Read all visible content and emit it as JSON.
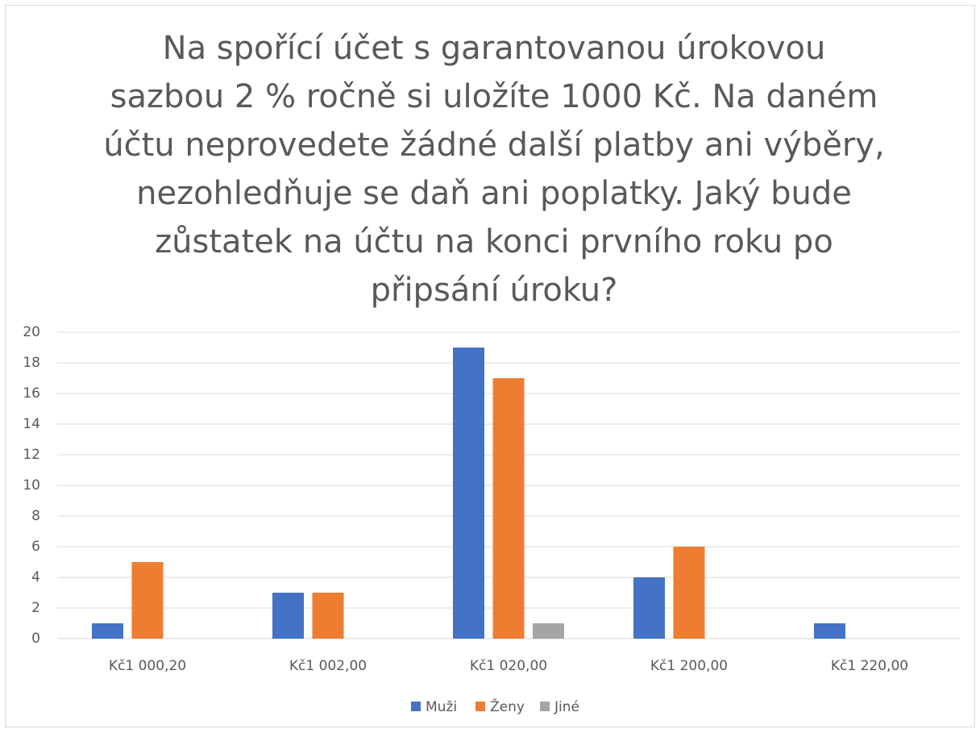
{
  "chart_data": {
    "type": "bar",
    "title": "Na spořící účet s garantovanou úrokovou sazbou 2 % ročně si uložíte 1000 Kč. Na daném účtu neprovedete žádné další platby ani výběry, nezohledňuje se daň ani poplatky. Jaký bude zůstatek na účtu na konci prvního roku po připsání úroku?",
    "categories": [
      "Kč1 000,20",
      "Kč1 002,00",
      "Kč1 020,00",
      "Kč1 200,00",
      "Kč1 220,00"
    ],
    "series": [
      {
        "name": "Muži",
        "color": "#4472c4",
        "values": [
          1,
          3,
          19,
          4,
          1
        ]
      },
      {
        "name": "Ženy",
        "color": "#ed7d31",
        "values": [
          5,
          3,
          17,
          6,
          0
        ]
      },
      {
        "name": "Jiné",
        "color": "#a5a5a5",
        "values": [
          0,
          0,
          1,
          0,
          0
        ]
      }
    ],
    "ylim": [
      0,
      20
    ],
    "yticks": [
      0,
      2,
      4,
      6,
      8,
      10,
      12,
      14,
      16,
      18,
      20
    ],
    "grid": true,
    "legend": "bottom"
  }
}
